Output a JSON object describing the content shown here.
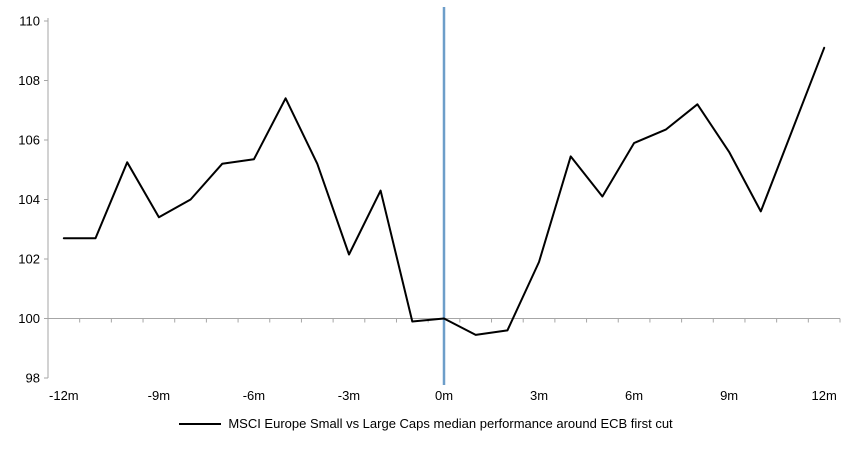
{
  "chart": {
    "legend_label": "MSCI Europe Small vs Large Caps median performance around ECB first cut"
  },
  "chart_data": {
    "type": "line",
    "title": "",
    "xlabel": "",
    "ylabel": "",
    "x_unit": "months relative to ECB first cut",
    "x": [
      -12,
      -11,
      -10,
      -9,
      -8,
      -7,
      -6,
      -5,
      -4,
      -3,
      -2,
      -1,
      0,
      1,
      2,
      3,
      4,
      5,
      6,
      7,
      8,
      9,
      10,
      11,
      12
    ],
    "series": [
      {
        "name": "MSCI Europe Small vs Large Caps median performance around ECB first cut",
        "color": "#000000",
        "values": [
          102.7,
          102.7,
          105.25,
          103.4,
          104.0,
          105.2,
          105.35,
          107.4,
          105.2,
          102.15,
          104.3,
          99.9,
          100.0,
          99.45,
          99.6,
          101.9,
          105.45,
          104.1,
          105.9,
          106.35,
          107.2,
          105.6,
          103.6,
          106.35,
          109.1
        ]
      }
    ],
    "ylim": [
      98,
      110
    ],
    "yticks": [
      98,
      100,
      102,
      104,
      106,
      108,
      110
    ],
    "x_tick_label_months": [
      -12,
      -9,
      -6,
      -3,
      0,
      3,
      6,
      9,
      12
    ],
    "x_tick_label_texts": [
      "-12m",
      "-9m",
      "-6m",
      "-3m",
      "0m",
      "3m",
      "6m",
      "9m",
      "12m"
    ],
    "baseline_value": 100,
    "event_line": {
      "x_month": 0,
      "color": "#6d9ec9"
    },
    "axis_color": "#a6a6a6",
    "grid": false,
    "legend_position": "bottom"
  }
}
